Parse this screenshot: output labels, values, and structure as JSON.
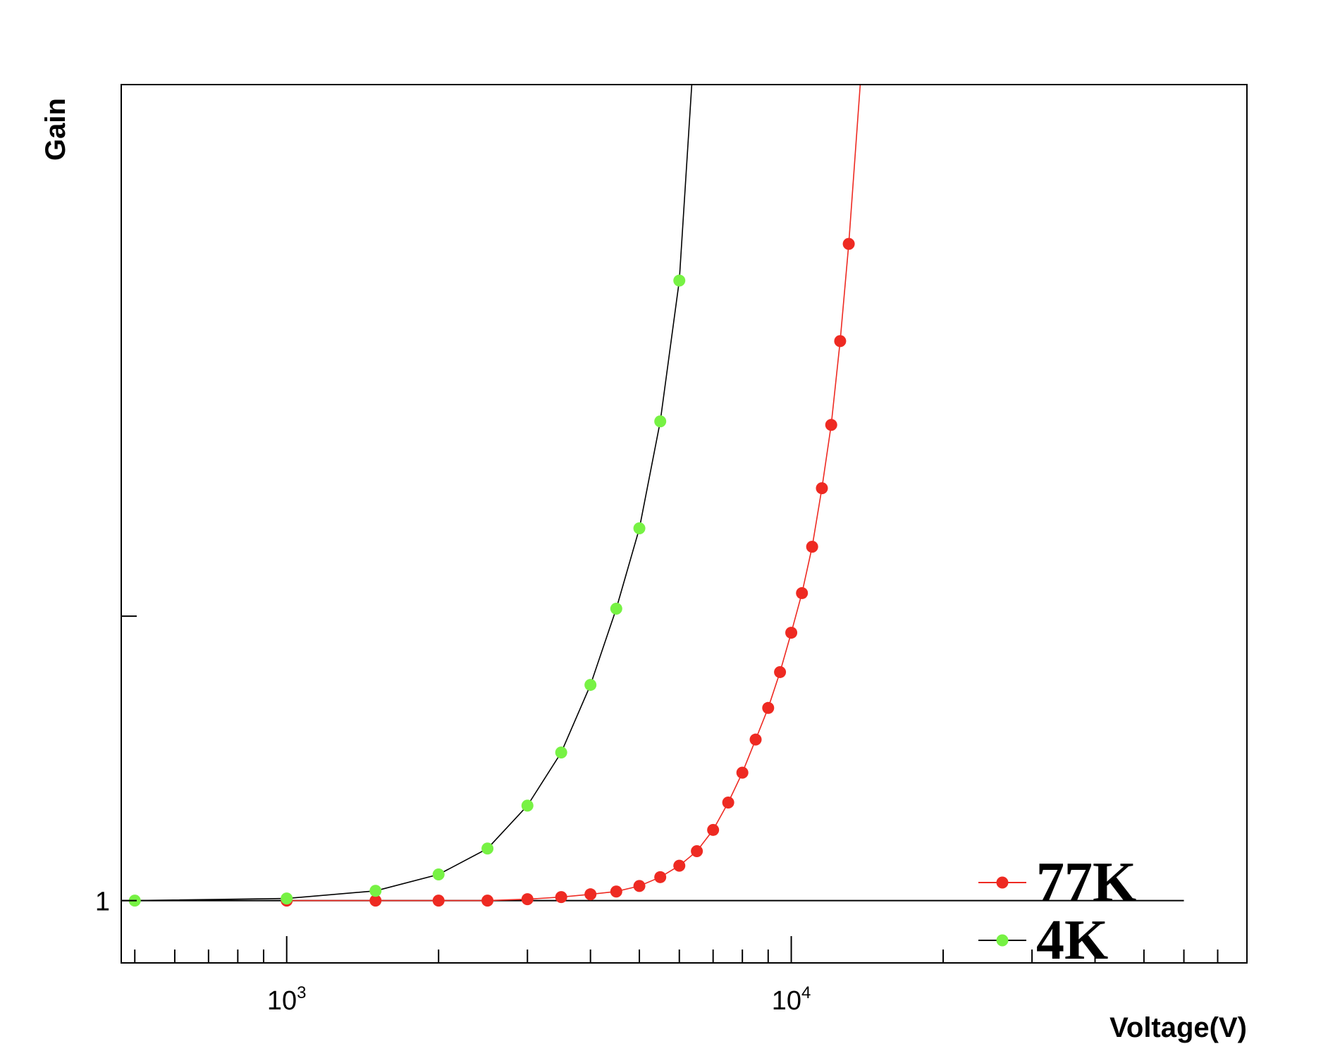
{
  "chart_data": {
    "type": "line",
    "xlabel": "Voltage(V)",
    "ylabel": "Gain",
    "x_scale": "log",
    "y_scale": "log",
    "xlim": [
      470,
      80000
    ],
    "ylim": [
      0.915,
      3.2
    ],
    "x_major_ticks": [
      {
        "value": 1000,
        "base": "10",
        "exp": "3"
      },
      {
        "value": 10000,
        "base": "10",
        "exp": "4"
      }
    ],
    "y_tick_labels": [
      {
        "value": 1,
        "label": "1"
      }
    ],
    "y_unlabeled_ticks": [
      1.5
    ],
    "reference_line": {
      "y": 1,
      "x_from": 470,
      "x_to": 60000
    },
    "grid": false,
    "legend_position": "bottom-right",
    "series": [
      {
        "name": "77K",
        "color": "#ee2a22",
        "line_color": "#ee2a22",
        "x": [
          1000,
          1500,
          2000,
          2500,
          3000,
          3500,
          4000,
          4500,
          5000,
          5500,
          6000,
          6500,
          7000,
          7500,
          8000,
          8500,
          9000,
          9500,
          10000,
          10500,
          11000,
          11500,
          12000,
          12500,
          13000
        ],
        "y": [
          1.0,
          1.0,
          1.0,
          1.0,
          1.002,
          1.005,
          1.009,
          1.013,
          1.021,
          1.034,
          1.051,
          1.073,
          1.106,
          1.15,
          1.2,
          1.258,
          1.316,
          1.385,
          1.465,
          1.55,
          1.656,
          1.8,
          1.97,
          2.22,
          2.55
        ],
        "line_extends_to": {
          "x": 13700,
          "y": 3.2
        }
      },
      {
        "name": "4K",
        "color": "#77f244",
        "line_color": "#000000",
        "x": [
          500,
          1000,
          1500,
          2000,
          2500,
          3000,
          3500,
          4000,
          4500,
          5000,
          5500,
          6000
        ],
        "y": [
          1.0,
          1.003,
          1.014,
          1.038,
          1.077,
          1.145,
          1.235,
          1.36,
          1.516,
          1.7,
          1.98,
          2.42
        ],
        "line_extends_to": {
          "x": 6350,
          "y": 3.2
        }
      }
    ]
  }
}
